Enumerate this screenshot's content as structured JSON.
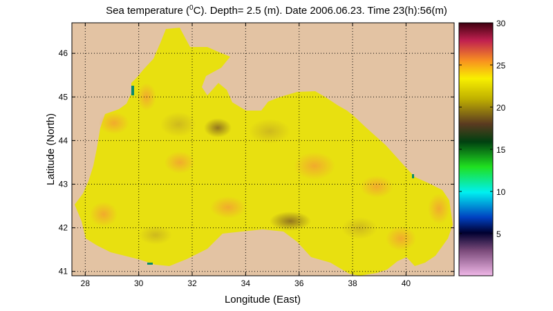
{
  "title": {
    "prefix": "Sea temperature (",
    "superscript": "0",
    "suffix": "C). Depth=  2.5 (m). Date 2006.06.23. Time 23(h):56(m)"
  },
  "map": {
    "xlabel": "Longitude (East)",
    "ylabel": "Latitude (North)",
    "xlim": [
      27.5,
      41.8
    ],
    "ylim": [
      40.9,
      46.7
    ],
    "x_ticks": [
      "28",
      "30",
      "32",
      "34",
      "36",
      "38",
      "40"
    ],
    "y_ticks": [
      "41",
      "42",
      "43",
      "44",
      "45",
      "46"
    ],
    "grid": "dotted",
    "land_color": "#e3c3a3",
    "sea_base_color": "#e8e010"
  },
  "colorbar": {
    "range": [
      0,
      30
    ],
    "ticks": [
      "5",
      "10",
      "15",
      "20",
      "25",
      "30"
    ]
  }
}
